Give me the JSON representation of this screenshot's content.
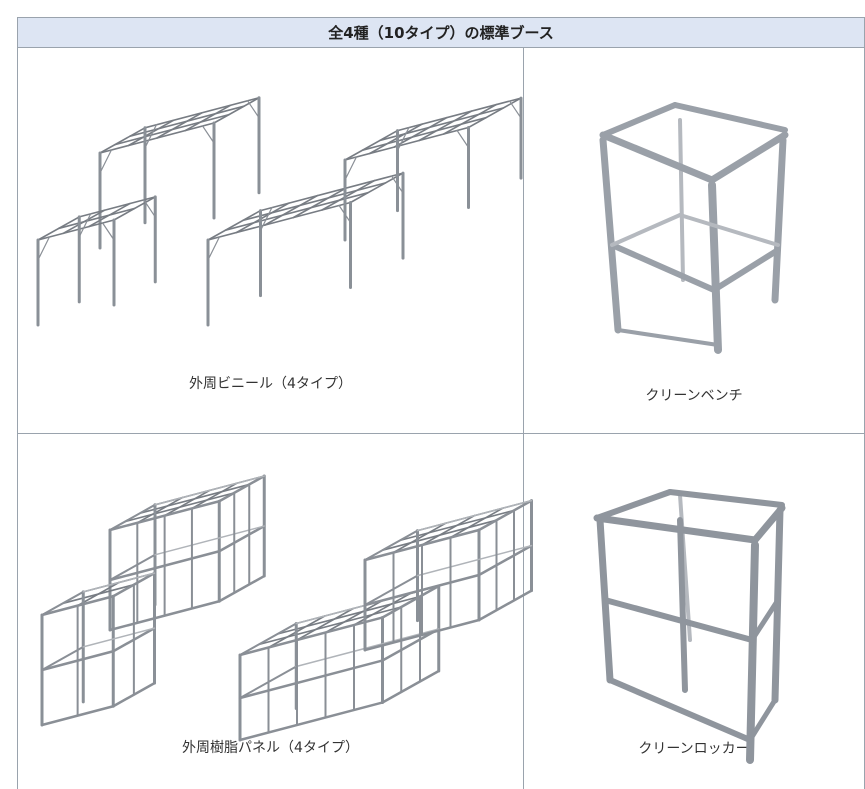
{
  "header": {
    "title": "全4種（10タイプ）の標準ブース"
  },
  "table": {
    "rows": [
      [
        "外周ビニール（4タイプ）",
        "クリーンベンチ"
      ],
      [
        "外周樹脂パネル（4タイプ）",
        "クリーンロッカー"
      ]
    ]
  }
}
